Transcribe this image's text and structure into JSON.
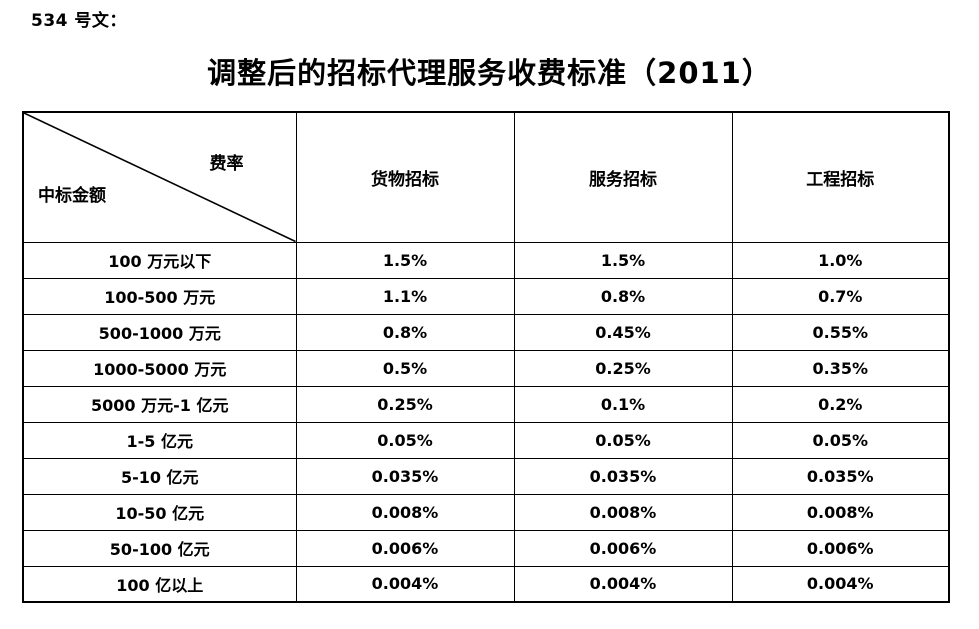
{
  "page": {
    "doc_ref": "534 号文：",
    "title": "调整后的招标代理服务收费标准（2011）"
  },
  "table": {
    "corner": {
      "top_right": "费率",
      "bottom_left": "中标金额"
    },
    "columns": [
      "货物招标",
      "服务招标",
      "工程招标"
    ],
    "rows": [
      {
        "label": "100 万元以下",
        "values": [
          "1.5%",
          "1.5%",
          "1.0%"
        ]
      },
      {
        "label": "100-500 万元",
        "values": [
          "1.1%",
          "0.8%",
          "0.7%"
        ]
      },
      {
        "label": "500-1000 万元",
        "values": [
          "0.8%",
          "0.45%",
          "0.55%"
        ]
      },
      {
        "label": "1000-5000 万元",
        "values": [
          "0.5%",
          "0.25%",
          "0.35%"
        ]
      },
      {
        "label": "5000 万元-1 亿元",
        "values": [
          "0.25%",
          "0.1%",
          "0.2%"
        ]
      },
      {
        "label": "1-5 亿元",
        "values": [
          "0.05%",
          "0.05%",
          "0.05%"
        ]
      },
      {
        "label": "5-10 亿元",
        "values": [
          "0.035%",
          "0.035%",
          "0.035%"
        ]
      },
      {
        "label": "10-50 亿元",
        "values": [
          "0.008%",
          "0.008%",
          "0.008%"
        ]
      },
      {
        "label": "50-100 亿元",
        "values": [
          "0.006%",
          "0.006%",
          "0.006%"
        ]
      },
      {
        "label": "100 亿以上",
        "values": [
          "0.004%",
          "0.004%",
          "0.004%"
        ]
      }
    ]
  },
  "colors": {
    "text": "#000000",
    "background": "#ffffff",
    "border": "#000000"
  }
}
